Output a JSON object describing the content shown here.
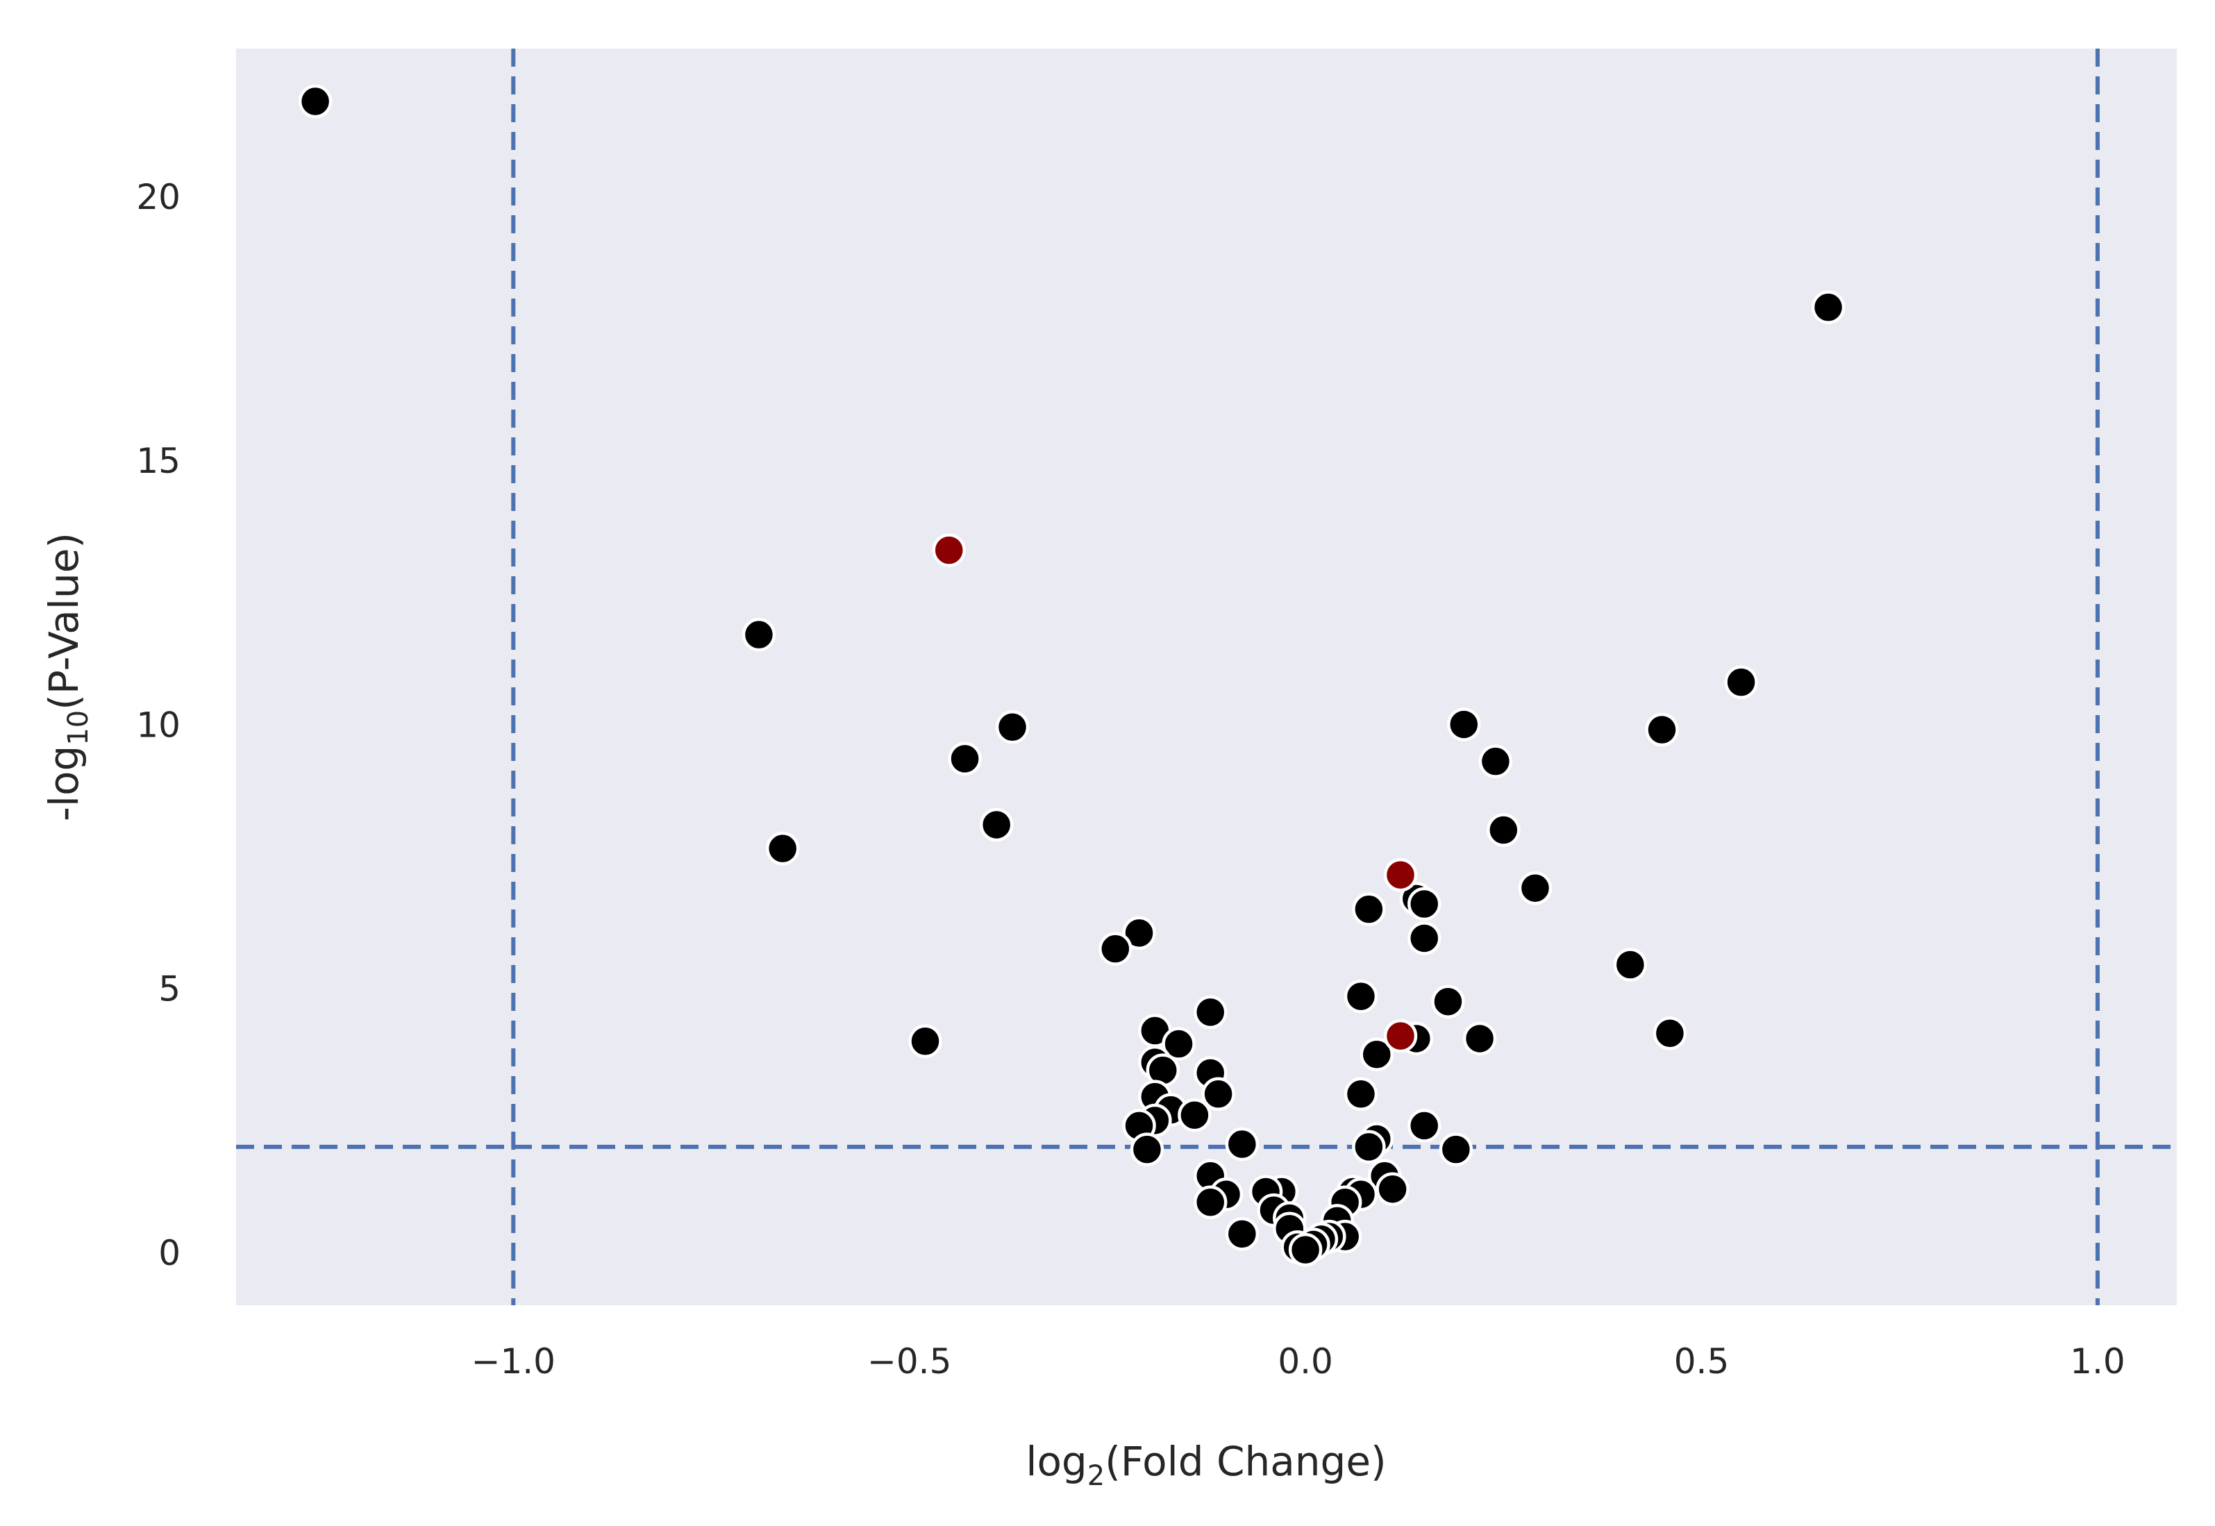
{
  "chart_data": {
    "type": "scatter",
    "xlabel": {
      "main": "log",
      "sub": "2",
      "rest": "(Fold Change)"
    },
    "ylabel": {
      "main": "-log",
      "sub": "10",
      "rest": "(P-Value)"
    },
    "xlim": [
      -1.35,
      1.1
    ],
    "ylim": [
      -1.0,
      22.8
    ],
    "xticks": [
      {
        "value": -1.0,
        "label": "−1.0"
      },
      {
        "value": -0.5,
        "label": "−0.5"
      },
      {
        "value": 0.0,
        "label": "0.0"
      },
      {
        "value": 0.5,
        "label": "0.5"
      },
      {
        "value": 1.0,
        "label": "1.0"
      }
    ],
    "yticks": [
      {
        "value": 0,
        "label": "0"
      },
      {
        "value": 5,
        "label": "5"
      },
      {
        "value": 10,
        "label": "10"
      },
      {
        "value": 15,
        "label": "15"
      },
      {
        "value": 20,
        "label": "20"
      }
    ],
    "grid": false,
    "background_color": "#eaeaf2",
    "threshold_color": "#4c72b0",
    "thresholds": {
      "x": [
        -1.0,
        1.0
      ],
      "y": 2.0
    },
    "series": [
      {
        "color": "#000000",
        "points": [
          [
            -1.25,
            21.8
          ],
          [
            0.66,
            17.9
          ],
          [
            -0.69,
            11.7
          ],
          [
            0.55,
            10.8
          ],
          [
            -0.37,
            9.95
          ],
          [
            0.2,
            10.0
          ],
          [
            0.45,
            9.9
          ],
          [
            -0.43,
            9.35
          ],
          [
            0.24,
            9.3
          ],
          [
            -0.39,
            8.1
          ],
          [
            0.25,
            8.0
          ],
          [
            -0.66,
            7.65
          ],
          [
            0.29,
            6.9
          ],
          [
            0.14,
            6.7
          ],
          [
            0.15,
            6.6
          ],
          [
            0.08,
            6.5
          ],
          [
            -0.21,
            6.05
          ],
          [
            0.15,
            5.95
          ],
          [
            -0.24,
            5.75
          ],
          [
            0.41,
            5.45
          ],
          [
            0.07,
            4.85
          ],
          [
            0.18,
            4.75
          ],
          [
            -0.12,
            4.55
          ],
          [
            -0.19,
            4.2
          ],
          [
            0.46,
            4.15
          ],
          [
            0.22,
            4.05
          ],
          [
            0.14,
            4.05
          ],
          [
            -0.48,
            4.0
          ],
          [
            -0.16,
            3.95
          ],
          [
            0.09,
            3.75
          ],
          [
            -0.19,
            3.6
          ],
          [
            -0.18,
            3.45
          ],
          [
            -0.12,
            3.4
          ],
          [
            0.07,
            3.0
          ],
          [
            -0.11,
            3.0
          ],
          [
            -0.19,
            2.95
          ],
          [
            -0.17,
            2.7
          ],
          [
            -0.14,
            2.6
          ],
          [
            -0.19,
            2.5
          ],
          [
            -0.21,
            2.4
          ],
          [
            0.15,
            2.4
          ],
          [
            0.09,
            2.15
          ],
          [
            -0.08,
            2.05
          ],
          [
            0.08,
            2.0
          ],
          [
            0.19,
            1.95
          ],
          [
            -0.2,
            1.95
          ],
          [
            -0.12,
            1.45
          ],
          [
            0.1,
            1.45
          ],
          [
            0.11,
            1.2
          ],
          [
            -0.03,
            1.15
          ],
          [
            -0.05,
            1.15
          ],
          [
            -0.1,
            1.1
          ],
          [
            0.06,
            1.15
          ],
          [
            0.07,
            1.1
          ],
          [
            0.05,
            0.95
          ],
          [
            -0.12,
            0.95
          ],
          [
            -0.04,
            0.8
          ],
          [
            -0.02,
            0.65
          ],
          [
            0.04,
            0.6
          ],
          [
            -0.02,
            0.45
          ],
          [
            -0.08,
            0.35
          ],
          [
            0.05,
            0.3
          ],
          [
            0.03,
            0.3
          ],
          [
            0.02,
            0.25
          ],
          [
            0.01,
            0.15
          ],
          [
            -0.01,
            0.1
          ],
          [
            0.0,
            0.05
          ]
        ]
      },
      {
        "color": "#8b0000",
        "points": [
          [
            -0.45,
            13.3
          ],
          [
            0.12,
            7.15
          ],
          [
            0.12,
            4.1
          ]
        ]
      }
    ]
  }
}
